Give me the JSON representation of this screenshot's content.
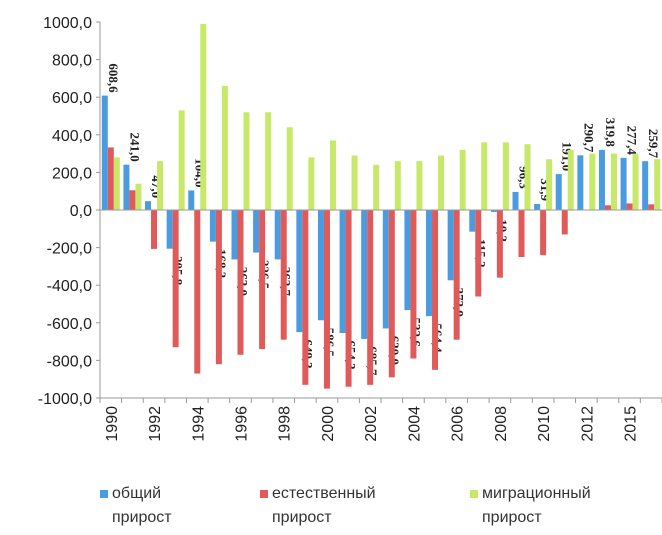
{
  "chart_data": {
    "type": "bar",
    "categories": [
      "1990",
      null,
      "1992",
      null,
      "1994",
      null,
      "1996",
      null,
      "1998",
      null,
      "2000",
      null,
      "2002",
      null,
      "2004",
      null,
      "2006",
      null,
      "2008",
      null,
      "2010",
      null,
      "2012",
      null,
      "2015",
      null
    ],
    "series": [
      {
        "name": "общий прирост",
        "color": "#4a9be0",
        "values": [
          608.6,
          241.0,
          47.0,
          -205.8,
          104.0,
          -168.3,
          -263.0,
          -226.5,
          -262.7,
          -649.3,
          -586.5,
          -654.3,
          -685.7,
          -630.0,
          -532.6,
          -564.4,
          -373.9,
          -115.2,
          -10.3,
          96.3,
          31.9,
          191.0,
          290.7,
          319.8,
          277.4,
          259.7
        ],
        "value_labels": [
          "608,6",
          "241,0",
          "47,0",
          "-205,8",
          "104,0",
          "-168,3",
          "-263,0",
          "-226,5",
          "-262,7",
          "-649,3",
          "-586,5",
          "-654,3",
          "-685,7",
          "-630,0",
          "-532,6",
          "-564,4",
          "-373,9",
          "-115,2",
          "-10,3",
          "96,3",
          "31,9",
          "191,0",
          "290,7",
          "319,8",
          "277,4",
          "259,7"
        ]
      },
      {
        "name": "естественный прирост",
        "color": "#e05a5a",
        "values": [
          333,
          105,
          -207,
          -730,
          -870,
          -820,
          -770,
          -740,
          -690,
          -930,
          -950,
          -940,
          -930,
          -890,
          -790,
          -850,
          -690,
          -460,
          -360,
          -250,
          -240,
          -130,
          -2,
          25,
          35,
          30
        ]
      },
      {
        "name": "миграционный прирост",
        "color": "#c8e86a",
        "values": [
          280,
          140,
          260,
          530,
          990,
          660,
          520,
          520,
          440,
          280,
          370,
          290,
          240,
          260,
          260,
          290,
          320,
          360,
          360,
          350,
          270,
          320,
          300,
          300,
          300,
          270
        ]
      }
    ],
    "ylim": [
      -1000,
      1000
    ],
    "yticks": [
      {
        "value": -1000,
        "label": "-1000,0"
      },
      {
        "value": -800,
        "label": "-800,0"
      },
      {
        "value": -600,
        "label": "-600,0"
      },
      {
        "value": -400,
        "label": "-400,0"
      },
      {
        "value": -200,
        "label": "-200,0"
      },
      {
        "value": 0,
        "label": "0,0"
      },
      {
        "value": 200,
        "label": "200,0"
      },
      {
        "value": 400,
        "label": "400,0"
      },
      {
        "value": 600,
        "label": "600,0"
      },
      {
        "value": 800,
        "label": "800,0"
      },
      {
        "value": 1000,
        "label": "1000,0"
      }
    ]
  }
}
